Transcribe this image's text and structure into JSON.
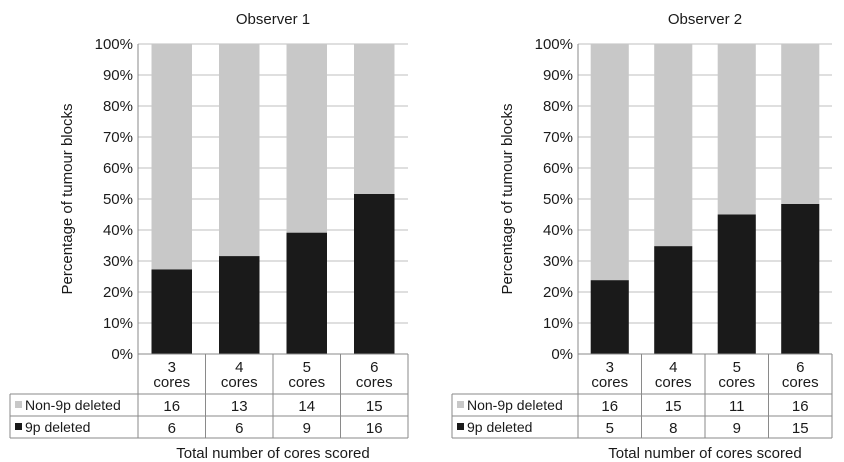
{
  "colors": {
    "non_deleted": "#c8c8c8",
    "deleted": "#1a1a1a",
    "grid": "#bfbfbf",
    "axis": "#8a8a8a"
  },
  "chart_data": [
    {
      "type": "bar",
      "stacked": true,
      "percent_stacked": true,
      "title": "Observer 1",
      "ylabel": "Percentage of  tumour blocks",
      "xlabel": "Total number of cores scored",
      "ylim": [
        0,
        100
      ],
      "yticks": [
        "0%",
        "10%",
        "20%",
        "30%",
        "40%",
        "50%",
        "60%",
        "70%",
        "80%",
        "90%",
        "100%"
      ],
      "categories": [
        "3 cores",
        "4 cores",
        "5 cores",
        "6 cores"
      ],
      "series": [
        {
          "name": "Non-9p deleted",
          "values": [
            16,
            13,
            14,
            15
          ]
        },
        {
          "name": "9p deleted",
          "values": [
            6,
            6,
            9,
            16
          ]
        }
      ],
      "grid": true,
      "legend": "data-table"
    },
    {
      "type": "bar",
      "stacked": true,
      "percent_stacked": true,
      "title": "Observer 2",
      "ylabel": "Percentage of  tumour blocks",
      "xlabel": "Total number of cores scored",
      "ylim": [
        0,
        100
      ],
      "yticks": [
        "0%",
        "10%",
        "20%",
        "30%",
        "40%",
        "50%",
        "60%",
        "70%",
        "80%",
        "90%",
        "100%"
      ],
      "categories": [
        "3 cores",
        "4 cores",
        "5 cores",
        "6 cores"
      ],
      "series": [
        {
          "name": "Non-9p deleted",
          "values": [
            16,
            15,
            11,
            16
          ]
        },
        {
          "name": "9p deleted",
          "values": [
            5,
            8,
            9,
            15
          ]
        }
      ],
      "grid": true,
      "legend": "data-table"
    }
  ]
}
